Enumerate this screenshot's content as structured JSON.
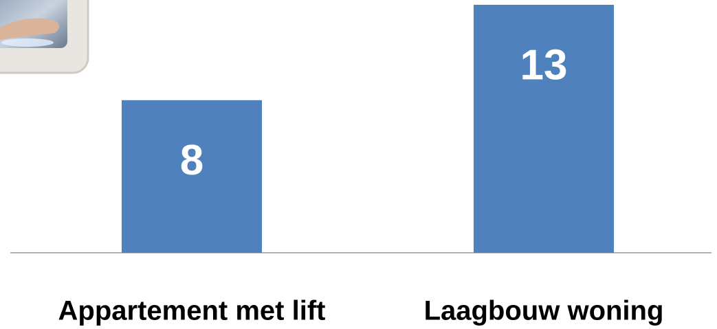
{
  "chart_data": {
    "type": "bar",
    "categories": [
      "Appartement met lift",
      "Laagbouw woning"
    ],
    "values": [
      8,
      13
    ],
    "color": "#4f81bd"
  }
}
